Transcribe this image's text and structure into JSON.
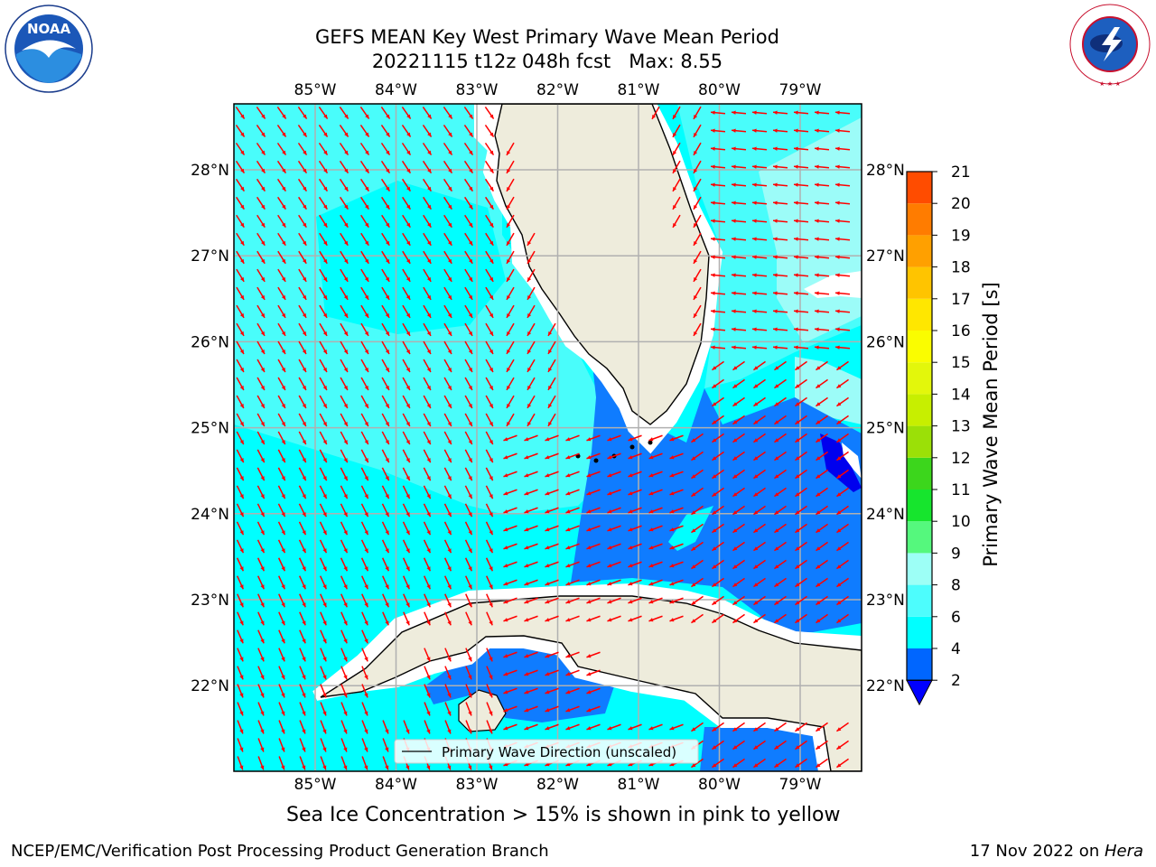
{
  "title": {
    "line1": "GEFS MEAN Key West Primary Wave Mean Period",
    "line2": "20221115 t12z 048h fcst   Max: 8.55"
  },
  "map": {
    "lon_labels": [
      "85°W",
      "84°W",
      "83°W",
      "82°W",
      "81°W",
      "80°W",
      "79°W"
    ],
    "lat_labels": [
      "28°N",
      "27°N",
      "26°N",
      "25°N",
      "24°N",
      "23°N",
      "22°N"
    ],
    "legend_label": "Primary Wave Direction (unscaled)",
    "colors": {
      "land": "#eeecdc",
      "vector": "#ff0000",
      "grid": "#b0b0b0",
      "band_2_4": "#0f7cff",
      "band_4_6": "#00ffff",
      "band_6_8": "#49fdfb",
      "band_8_9": "#9cfcf8",
      "band_below_2": "#0000ee"
    }
  },
  "colorbar": {
    "label": "Primary Wave Mean Period [s]",
    "ticks": [
      "2",
      "4",
      "6",
      "8",
      "9",
      "10",
      "11",
      "12",
      "13",
      "14",
      "15",
      "16",
      "17",
      "18",
      "19",
      "20",
      "21"
    ],
    "colors": [
      "#0066ff",
      "#00ffff",
      "#4dfdfd",
      "#9dfff6",
      "#55f87d",
      "#16e52d",
      "#3cd61c",
      "#9be007",
      "#c7ef00",
      "#e3f70b",
      "#fafd00",
      "#ffe700",
      "#ffc400",
      "#ffa000",
      "#ff7c00",
      "#ff4c00",
      "#ff1600"
    ],
    "extend_color": "#0000ff"
  },
  "note": "Sea Ice Concentration > 15% is shown in pink to yellow",
  "footer": {
    "left": "NCEP/EMC/Verification Post Processing Product Generation Branch",
    "right_date": "17 Nov 2022 on ",
    "right_machine": "Hera"
  },
  "logos": {
    "noaa_text": "NOAA",
    "nws_text": "NATIONAL WEATHER SERVICE"
  }
}
